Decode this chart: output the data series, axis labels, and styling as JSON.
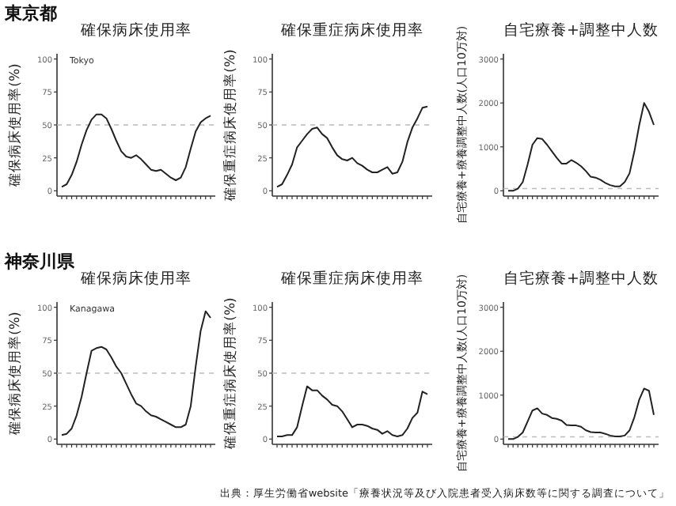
{
  "chart_data": [
    {
      "type": "line",
      "title": "確保病床使用率",
      "ylabel": "確保病床使用率(%)",
      "annotations": [
        "東京都",
        "Tokyo"
      ],
      "categories": [
        null,
        null,
        null,
        null,
        null,
        null,
        null,
        null,
        null,
        null,
        null,
        null,
        null,
        null,
        null,
        null,
        null,
        null,
        null,
        null,
        null,
        null,
        null,
        null,
        null,
        null,
        null,
        null,
        null,
        null,
        null
      ],
      "series": [
        {
          "color": "#222222",
          "values": [
            3,
            5,
            12,
            22,
            35,
            46,
            54,
            58,
            58,
            55,
            47,
            38,
            30,
            26,
            25,
            27,
            24,
            20,
            16,
            15,
            16,
            13,
            10,
            8,
            10,
            18,
            32,
            45,
            52,
            55,
            57
          ]
        }
      ],
      "ylim": [
        -4,
        104
      ],
      "yticks": [
        0,
        25,
        50,
        75,
        100
      ],
      "ref_lines": [
        {
          "axis": "y",
          "value": 50,
          "color": "#bbbbbb",
          "line_style": "dashed"
        }
      ],
      "grid": false
    },
    {
      "type": "line",
      "title": "確保重症病床使用率",
      "ylabel": "確保重症病床使用率(%)",
      "categories": [
        null,
        null,
        null,
        null,
        null,
        null,
        null,
        null,
        null,
        null,
        null,
        null,
        null,
        null,
        null,
        null,
        null,
        null,
        null,
        null,
        null,
        null,
        null,
        null,
        null,
        null,
        null,
        null,
        null,
        null,
        null
      ],
      "series": [
        {
          "color": "#222222",
          "values": [
            3,
            5,
            12,
            20,
            33,
            38,
            43,
            47,
            48,
            43,
            40,
            33,
            27,
            24,
            23,
            25,
            21,
            19,
            16,
            14,
            14,
            16,
            18,
            13,
            14,
            22,
            37,
            48,
            55,
            63,
            64
          ]
        }
      ],
      "ylim": [
        -4,
        104
      ],
      "yticks": [
        0,
        25,
        50,
        75,
        100
      ],
      "ref_lines": [
        {
          "axis": "y",
          "value": 50,
          "color": "#bbbbbb",
          "line_style": "dashed"
        }
      ],
      "grid": false
    },
    {
      "type": "line",
      "title": "自宅療養+調整中人数",
      "ylabel": "自宅療養+療養調整中人数(人口10万対)",
      "categories": [
        null,
        null,
        null,
        null,
        null,
        null,
        null,
        null,
        null,
        null,
        null,
        null,
        null,
        null,
        null,
        null,
        null,
        null,
        null,
        null,
        null,
        null,
        null,
        null,
        null,
        null,
        null,
        null,
        null,
        null,
        null
      ],
      "series": [
        {
          "color": "#222222",
          "values": [
            0,
            0,
            50,
            200,
            600,
            1050,
            1200,
            1180,
            1050,
            900,
            750,
            620,
            620,
            700,
            640,
            560,
            450,
            320,
            300,
            250,
            180,
            130,
            100,
            100,
            200,
            400,
            900,
            1500,
            2000,
            1800,
            1500
          ]
        }
      ],
      "ylim": [
        -120,
        3120
      ],
      "yticks": [
        0,
        1000,
        2000,
        3000
      ],
      "ref_lines": [
        {
          "axis": "y",
          "value": 50,
          "color": "#bbbbbb",
          "line_style": "dashed"
        }
      ],
      "grid": false
    },
    {
      "type": "line",
      "title": "確保病床使用率",
      "ylabel": "確保病床使用率(%)",
      "annotations": [
        "神奈川県",
        "Kanagawa"
      ],
      "categories": [
        null,
        null,
        null,
        null,
        null,
        null,
        null,
        null,
        null,
        null,
        null,
        null,
        null,
        null,
        null,
        null,
        null,
        null,
        null,
        null,
        null,
        null,
        null,
        null,
        null,
        null,
        null,
        null,
        null,
        null,
        null
      ],
      "series": [
        {
          "color": "#222222",
          "values": [
            3,
            4,
            8,
            18,
            32,
            50,
            67,
            69,
            70,
            68,
            62,
            55,
            50,
            42,
            34,
            27,
            25,
            21,
            18,
            17,
            15,
            13,
            11,
            9,
            9,
            11,
            25,
            55,
            82,
            97,
            92
          ]
        }
      ],
      "ylim": [
        -4,
        104
      ],
      "yticks": [
        0,
        25,
        50,
        75,
        100
      ],
      "ref_lines": [
        {
          "axis": "y",
          "value": 50,
          "color": "#bbbbbb",
          "line_style": "dashed"
        }
      ],
      "grid": false
    },
    {
      "type": "line",
      "title": "確保重症病床使用率",
      "ylabel": "確保重症病床使用率(%)",
      "categories": [
        null,
        null,
        null,
        null,
        null,
        null,
        null,
        null,
        null,
        null,
        null,
        null,
        null,
        null,
        null,
        null,
        null,
        null,
        null,
        null,
        null,
        null,
        null,
        null,
        null,
        null,
        null,
        null,
        null,
        null,
        null
      ],
      "series": [
        {
          "color": "#222222",
          "values": [
            2,
            2,
            3,
            3,
            9,
            25,
            40,
            37,
            37,
            33,
            30,
            26,
            25,
            21,
            15,
            9,
            11,
            11,
            10,
            8,
            7,
            4,
            6,
            3,
            2,
            3,
            8,
            16,
            20,
            36,
            34
          ]
        }
      ],
      "ylim": [
        -4,
        104
      ],
      "yticks": [
        0,
        25,
        50,
        75,
        100
      ],
      "ref_lines": [
        {
          "axis": "y",
          "value": 50,
          "color": "#bbbbbb",
          "line_style": "dashed"
        }
      ],
      "grid": false
    },
    {
      "type": "line",
      "title": "自宅療養+調整中人数",
      "ylabel": "自宅療養+療養調整中人数(人口10万対)",
      "annotations": [
        "出典：厚生労働省website「療養状況等及び入院患者受入病床数等に関する調査について」"
      ],
      "categories": [
        null,
        null,
        null,
        null,
        null,
        null,
        null,
        null,
        null,
        null,
        null,
        null,
        null,
        null,
        null,
        null,
        null,
        null,
        null,
        null,
        null,
        null,
        null,
        null,
        null,
        null,
        null,
        null,
        null,
        null,
        null
      ],
      "series": [
        {
          "color": "#222222",
          "values": [
            0,
            0,
            50,
            150,
            400,
            650,
            700,
            580,
            550,
            480,
            460,
            420,
            320,
            310,
            310,
            280,
            200,
            160,
            150,
            150,
            120,
            80,
            60,
            60,
            80,
            200,
            500,
            900,
            1150,
            1100,
            550
          ]
        }
      ],
      "ylim": [
        -120,
        3120
      ],
      "yticks": [
        0,
        1000,
        2000,
        3000
      ],
      "ref_lines": [
        {
          "axis": "y",
          "value": 50,
          "color": "#bbbbbb",
          "line_style": "dashed"
        }
      ],
      "grid": false
    }
  ]
}
